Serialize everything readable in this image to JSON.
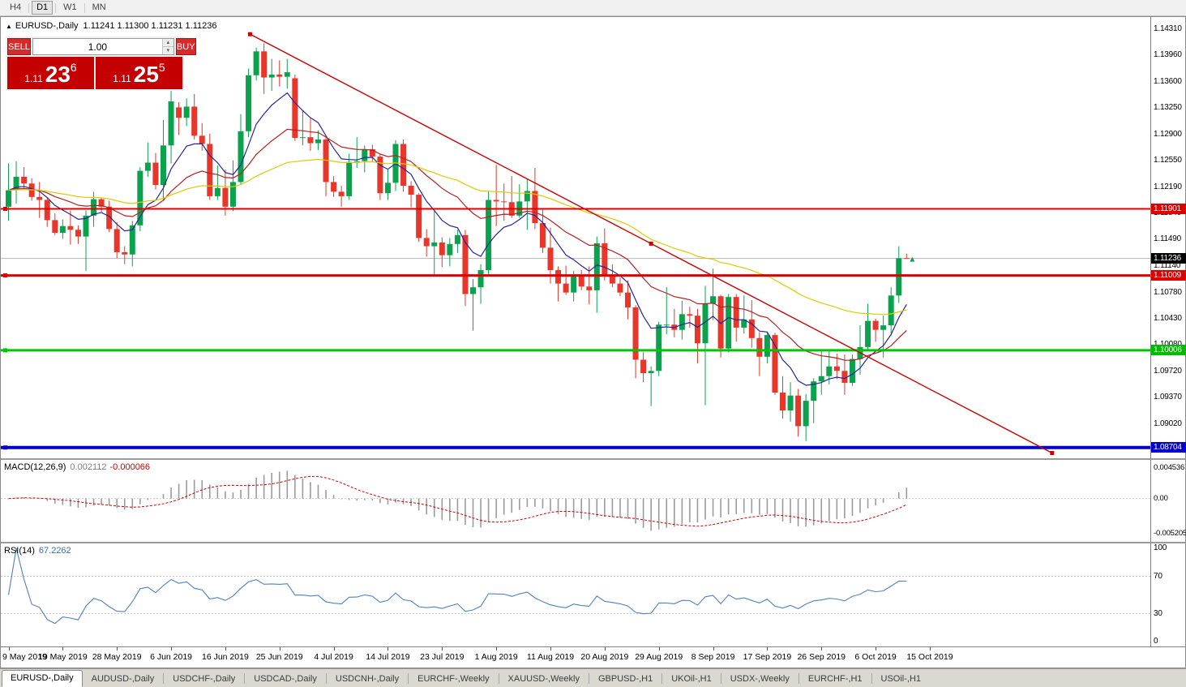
{
  "toolbar": {
    "timeframes": [
      "H4",
      "D1",
      "W1",
      "MN"
    ],
    "active": "D1"
  },
  "header": {
    "toggle_icon": "▲",
    "title_symbol": "EURUSD-,Daily",
    "title_ohlc": "1.11241 1.11300 1.11231 1.11236"
  },
  "trade_panel": {
    "sell_label": "SELL",
    "buy_label": "BUY",
    "volume": "1.00",
    "sell_price": {
      "small": "1.11",
      "big": "23",
      "sup": "6"
    },
    "buy_price": {
      "small": "1.11",
      "big": "25",
      "sup": "5"
    }
  },
  "price_scale_labels": [
    "1.14310",
    "1.13960",
    "1.13600",
    "1.13250",
    "1.12900",
    "1.12550",
    "1.12190",
    "1.11840",
    "1.11490",
    "1.11140",
    "1.10780",
    "1.10430",
    "1.10080",
    "1.09720",
    "1.09370",
    "1.09020"
  ],
  "price_badges": [
    {
      "text": "1.11901",
      "price": 1.11901,
      "bg": "#dd0000"
    },
    {
      "text": "1.11236",
      "price": 1.11236,
      "bg": "#000000"
    },
    {
      "text": "1.11009",
      "price": 1.11009,
      "bg": "#dd0000"
    },
    {
      "text": "1.10006",
      "price": 1.10006,
      "bg": "#00bb00"
    },
    {
      "text": "1.08704",
      "price": 1.08704,
      "bg": "#0000cc"
    }
  ],
  "chart_data": {
    "type": "candlestick",
    "symbol": "EURUSD",
    "timeframe": "Daily",
    "ylim": [
      1.0856,
      1.1447
    ],
    "colors": {
      "up": "#0ba24e",
      "down": "#e8362a"
    },
    "dates": [
      "2019.05.09",
      "2019.05.10",
      "2019.05.13",
      "2019.05.14",
      "2019.05.15",
      "2019.05.16",
      "2019.05.17",
      "2019.05.20",
      "2019.05.21",
      "2019.05.22",
      "2019.05.23",
      "2019.05.24",
      "2019.05.27",
      "2019.05.28",
      "2019.05.29",
      "2019.05.30",
      "2019.05.31",
      "2019.06.03",
      "2019.06.04",
      "2019.06.05",
      "2019.06.06",
      "2019.06.07",
      "2019.06.10",
      "2019.06.11",
      "2019.06.12",
      "2019.06.13",
      "2019.06.14",
      "2019.06.17",
      "2019.06.18",
      "2019.06.19",
      "2019.06.20",
      "2019.06.21",
      "2019.06.24",
      "2019.06.25",
      "2019.06.26",
      "2019.06.27",
      "2019.06.28",
      "2019.07.01",
      "2019.07.02",
      "2019.07.03",
      "2019.07.04",
      "2019.07.05",
      "2019.07.08",
      "2019.07.09",
      "2019.07.10",
      "2019.07.11",
      "2019.07.12",
      "2019.07.15",
      "2019.07.16",
      "2019.07.17",
      "2019.07.18",
      "2019.07.19",
      "2019.07.22",
      "2019.07.23",
      "2019.07.24",
      "2019.07.25",
      "2019.07.26",
      "2019.07.29",
      "2019.07.30",
      "2019.07.31",
      "2019.08.01",
      "2019.08.02",
      "2019.08.05",
      "2019.08.06",
      "2019.08.07",
      "2019.08.08",
      "2019.08.09",
      "2019.08.12",
      "2019.08.13",
      "2019.08.14",
      "2019.08.15",
      "2019.08.16",
      "2019.08.19",
      "2019.08.20",
      "2019.08.21",
      "2019.08.22",
      "2019.08.23",
      "2019.08.26",
      "2019.08.27",
      "2019.08.28",
      "2019.08.29",
      "2019.08.30",
      "2019.09.02",
      "2019.09.03",
      "2019.09.04",
      "2019.09.05",
      "2019.09.06",
      "2019.09.09",
      "2019.09.10",
      "2019.09.11",
      "2019.09.12",
      "2019.09.13",
      "2019.09.16",
      "2019.09.17",
      "2019.09.18",
      "2019.09.19",
      "2019.09.20",
      "2019.09.23",
      "2019.09.24",
      "2019.09.25",
      "2019.09.26",
      "2019.09.27",
      "2019.09.30",
      "2019.10.01",
      "2019.10.02",
      "2019.10.03",
      "2019.10.04",
      "2019.10.07",
      "2019.10.08",
      "2019.10.09",
      "2019.10.10",
      "2019.10.11",
      "2019.10.14",
      "2019.10.15",
      "2019.10.16",
      "2019.10.17",
      "2019.10.18"
    ],
    "candles": [
      [
        1.1193,
        1.1251,
        1.1174,
        1.1215
      ],
      [
        1.1215,
        1.1254,
        1.1197,
        1.1233
      ],
      [
        1.1233,
        1.1246,
        1.1218,
        1.1224
      ],
      [
        1.1224,
        1.1231,
        1.1201,
        1.1206
      ],
      [
        1.1206,
        1.1226,
        1.1178,
        1.1202
      ],
      [
        1.1202,
        1.1206,
        1.1166,
        1.1175
      ],
      [
        1.1175,
        1.1184,
        1.1155,
        1.1158
      ],
      [
        1.1158,
        1.1176,
        1.115,
        1.1167
      ],
      [
        1.1167,
        1.1188,
        1.1142,
        1.1162
      ],
      [
        1.1162,
        1.1168,
        1.1143,
        1.1153
      ],
      [
        1.1153,
        1.1188,
        1.1107,
        1.1181
      ],
      [
        1.1181,
        1.1213,
        1.1166,
        1.1203
      ],
      [
        1.1203,
        1.1205,
        1.1186,
        1.1193
      ],
      [
        1.1193,
        1.1201,
        1.1159,
        1.1163
      ],
      [
        1.1163,
        1.1172,
        1.1124,
        1.1132
      ],
      [
        1.1132,
        1.114,
        1.1116,
        1.1129
      ],
      [
        1.1129,
        1.1174,
        1.1113,
        1.1168
      ],
      [
        1.1168,
        1.1246,
        1.116,
        1.1241
      ],
      [
        1.1241,
        1.1279,
        1.1233,
        1.1252
      ],
      [
        1.1252,
        1.1265,
        1.1216,
        1.1222
      ],
      [
        1.1222,
        1.1309,
        1.1201,
        1.1275
      ],
      [
        1.1275,
        1.1348,
        1.1251,
        1.1334
      ],
      [
        1.1326,
        1.1333,
        1.1289,
        1.1312
      ],
      [
        1.1312,
        1.1338,
        1.1301,
        1.1327
      ],
      [
        1.1327,
        1.1344,
        1.1283,
        1.1288
      ],
      [
        1.1288,
        1.1305,
        1.1268,
        1.1277
      ],
      [
        1.1277,
        1.1291,
        1.1202,
        1.1207
      ],
      [
        1.1207,
        1.1248,
        1.1202,
        1.1218
      ],
      [
        1.1218,
        1.1243,
        1.1181,
        1.1193
      ],
      [
        1.1193,
        1.1255,
        1.1187,
        1.1226
      ],
      [
        1.1226,
        1.1317,
        1.1222,
        1.1294
      ],
      [
        1.1294,
        1.1378,
        1.1286,
        1.1369
      ],
      [
        1.1369,
        1.1406,
        1.1362,
        1.1401
      ],
      [
        1.1401,
        1.1412,
        1.1344,
        1.1366
      ],
      [
        1.1366,
        1.1391,
        1.1348,
        1.137
      ],
      [
        1.137,
        1.1389,
        1.1354,
        1.1367
      ],
      [
        1.1367,
        1.1391,
        1.1351,
        1.1373
      ],
      [
        1.1365,
        1.137,
        1.1281,
        1.1285
      ],
      [
        1.1285,
        1.1322,
        1.1275,
        1.1286
      ],
      [
        1.1286,
        1.1312,
        1.1268,
        1.1278
      ],
      [
        1.1278,
        1.1295,
        1.1269,
        1.1283
      ],
      [
        1.1283,
        1.1288,
        1.1207,
        1.1226
      ],
      [
        1.1226,
        1.1234,
        1.1206,
        1.1213
      ],
      [
        1.1213,
        1.1221,
        1.1193,
        1.1207
      ],
      [
        1.1207,
        1.1264,
        1.1202,
        1.1253
      ],
      [
        1.1253,
        1.1286,
        1.1245,
        1.1254
      ],
      [
        1.1254,
        1.1275,
        1.1239,
        1.127
      ],
      [
        1.127,
        1.1276,
        1.1253,
        1.126
      ],
      [
        1.126,
        1.1263,
        1.1202,
        1.1211
      ],
      [
        1.1211,
        1.1243,
        1.1202,
        1.1225
      ],
      [
        1.1225,
        1.1282,
        1.1214,
        1.1277
      ],
      [
        1.1277,
        1.1283,
        1.1213,
        1.1221
      ],
      [
        1.1221,
        1.1227,
        1.1192,
        1.1209
      ],
      [
        1.1209,
        1.1211,
        1.1146,
        1.1151
      ],
      [
        1.1151,
        1.1163,
        1.1126,
        1.114
      ],
      [
        1.114,
        1.1187,
        1.1101,
        1.1145
      ],
      [
        1.1145,
        1.1152,
        1.1112,
        1.1128
      ],
      [
        1.1128,
        1.1151,
        1.1113,
        1.1143
      ],
      [
        1.1143,
        1.1162,
        1.1131,
        1.1155
      ],
      [
        1.1155,
        1.1162,
        1.106,
        1.1076
      ],
      [
        1.1076,
        1.1096,
        1.1027,
        1.1085
      ],
      [
        1.1085,
        1.1116,
        1.1063,
        1.1108
      ],
      [
        1.1108,
        1.1214,
        1.1101,
        1.1202
      ],
      [
        1.1202,
        1.1249,
        1.1167,
        1.12
      ],
      [
        1.12,
        1.1224,
        1.1174,
        1.1199
      ],
      [
        1.1199,
        1.1234,
        1.1178,
        1.1181
      ],
      [
        1.1181,
        1.1223,
        1.1178,
        1.12
      ],
      [
        1.12,
        1.123,
        1.1162,
        1.1214
      ],
      [
        1.1214,
        1.1245,
        1.1163,
        1.1171
      ],
      [
        1.1171,
        1.1191,
        1.1131,
        1.1138
      ],
      [
        1.1138,
        1.1165,
        1.109,
        1.1108
      ],
      [
        1.1108,
        1.1113,
        1.1066,
        1.109
      ],
      [
        1.109,
        1.1114,
        1.1075,
        1.1078
      ],
      [
        1.1078,
        1.1107,
        1.1066,
        1.11
      ],
      [
        1.11,
        1.1108,
        1.1081,
        1.1086
      ],
      [
        1.1086,
        1.1113,
        1.1062,
        1.1081
      ],
      [
        1.1081,
        1.1153,
        1.1051,
        1.1144
      ],
      [
        1.1144,
        1.1164,
        1.1094,
        1.1101
      ],
      [
        1.1101,
        1.1116,
        1.1085,
        1.109
      ],
      [
        1.109,
        1.1098,
        1.1073,
        1.1078
      ],
      [
        1.1078,
        1.1094,
        1.1042,
        1.1058
      ],
      [
        1.1058,
        1.1061,
        1.0963,
        1.0988
      ],
      [
        1.0988,
        1.0998,
        1.0958,
        1.097
      ],
      [
        1.097,
        1.0979,
        1.0926,
        1.0973
      ],
      [
        1.0973,
        1.1039,
        1.0966,
        1.1035
      ],
      [
        1.1035,
        1.1085,
        1.1022,
        1.1035
      ],
      [
        1.1035,
        1.1056,
        1.1018,
        1.1028
      ],
      [
        1.1028,
        1.1067,
        1.1015,
        1.1049
      ],
      [
        1.1049,
        1.1059,
        1.1031,
        1.1047
      ],
      [
        1.1047,
        1.1056,
        1.0983,
        1.101
      ],
      [
        1.101,
        1.1087,
        1.0927,
        1.1063
      ],
      [
        1.1063,
        1.111,
        1.1041,
        1.1073
      ],
      [
        1.1073,
        1.1075,
        1.0991,
        1.1003
      ],
      [
        1.1003,
        1.1076,
        1.0998,
        1.1072
      ],
      [
        1.1072,
        1.1076,
        1.1012,
        1.1031
      ],
      [
        1.1031,
        1.1074,
        1.1023,
        1.1042
      ],
      [
        1.1042,
        1.1068,
        1.1004,
        1.1017
      ],
      [
        1.1017,
        1.1025,
        1.0966,
        1.0992
      ],
      [
        1.0992,
        1.1024,
        1.0983,
        1.1021
      ],
      [
        1.1021,
        1.1024,
        1.0941,
        1.0944
      ],
      [
        1.0944,
        1.0966,
        1.0909,
        1.092
      ],
      [
        1.092,
        1.0958,
        1.0905,
        1.094
      ],
      [
        1.094,
        1.0949,
        1.0885,
        1.0899
      ],
      [
        1.0899,
        1.0942,
        1.0879,
        1.0933
      ],
      [
        1.0933,
        1.0963,
        1.0903,
        1.0959
      ],
      [
        1.0959,
        1.0999,
        1.0941,
        1.0966
      ],
      [
        1.0966,
        1.0999,
        1.0955,
        1.0979
      ],
      [
        1.0979,
        1.0996,
        1.0962,
        1.0973
      ],
      [
        1.0973,
        1.0995,
        1.0941,
        1.0957
      ],
      [
        1.0957,
        1.0995,
        1.0953,
        1.0989
      ],
      [
        1.0989,
        1.1034,
        1.0968,
        1.1005
      ],
      [
        1.1005,
        1.1063,
        1.1002,
        1.104
      ],
      [
        1.104,
        1.1043,
        1.1012,
        1.1028
      ],
      [
        1.1028,
        1.1047,
        1.0991,
        1.1034
      ],
      [
        1.1034,
        1.1085,
        1.1023,
        1.1074
      ],
      [
        1.1074,
        1.114,
        1.1064,
        1.1124
      ],
      [
        1.11241,
        1.113,
        1.11231,
        1.11236
      ]
    ],
    "x_ticks": [
      {
        "i": 0,
        "label": "9 May 2019"
      },
      {
        "i": 7,
        "label": "19 May 2019"
      },
      {
        "i": 14,
        "label": "28 May 2019"
      },
      {
        "i": 21,
        "label": "6 Jun 2019"
      },
      {
        "i": 28,
        "label": "16 Jun 2019"
      },
      {
        "i": 35,
        "label": "25 Jun 2019"
      },
      {
        "i": 42,
        "label": "4 Jul 2019"
      },
      {
        "i": 49,
        "label": "14 Jul 2019"
      },
      {
        "i": 56,
        "label": "23 Jul 2019"
      },
      {
        "i": 63,
        "label": "1 Aug 2019"
      },
      {
        "i": 70,
        "label": "11 Aug 2019"
      },
      {
        "i": 77,
        "label": "20 Aug 2019"
      },
      {
        "i": 84,
        "label": "29 Aug 2019"
      },
      {
        "i": 91,
        "label": "8 Sep 2019"
      },
      {
        "i": 98,
        "label": "17 Sep 2019"
      },
      {
        "i": 105,
        "label": "26 Sep 2019"
      },
      {
        "i": 112,
        "label": "6 Oct 2019"
      },
      {
        "i": 119,
        "label": "15 Oct 2019"
      }
    ],
    "hlines": [
      {
        "price": 1.11901,
        "color": "#dd0000",
        "width": 2
      },
      {
        "price": 1.11009,
        "color": "#dd0000",
        "width": 3
      },
      {
        "price": 1.10006,
        "color": "#00c400",
        "width": 3
      },
      {
        "price": 1.08704,
        "color": "#0000cc",
        "width": 4
      }
    ],
    "bid_line": {
      "price": 1.11236,
      "color": "#b8b8b8"
    },
    "trendline": {
      "i1": 31.2,
      "p1": 1.1424,
      "i2": 134.8,
      "p2": 1.0863,
      "color": "#cc0000"
    },
    "ma": [
      {
        "period": 8,
        "color": "#24249c"
      },
      {
        "period": 21,
        "color": "#b22222"
      },
      {
        "period": 55,
        "color": "#ddca00"
      }
    ],
    "macd": {
      "label": "MACD(12,26,9)",
      "value_main": "0.002112",
      "value_signal": "-0.000066",
      "scale_top": "0.004536",
      "scale_zero": "0.00",
      "scale_bottom": "-0.005205",
      "range": [
        -0.005205,
        0.004536
      ],
      "hist_color": "#9b9b9b",
      "signal_color": "#d00000"
    },
    "rsi": {
      "label": "RSI(14)",
      "value": "67.2262",
      "scale": [
        "100",
        "70",
        "30",
        "0"
      ],
      "levels": [
        70,
        30
      ],
      "color": "#4f81bd"
    }
  },
  "tabs": [
    {
      "label": "EURUSD-,Daily",
      "active": true
    },
    {
      "label": "AUDUSD-,Daily",
      "active": false
    },
    {
      "label": "USDCHF-,Daily",
      "active": false
    },
    {
      "label": "USDCAD-,Daily",
      "active": false
    },
    {
      "label": "USDCNH-,Daily",
      "active": false
    },
    {
      "label": "EURCHF-,Weekly",
      "active": false
    },
    {
      "label": "XAUUSD-,Weekly",
      "active": false
    },
    {
      "label": "GBPUSD-,H1",
      "active": false
    },
    {
      "label": "UKOil-,H1",
      "active": false
    },
    {
      "label": "USDX-,Weekly",
      "active": false
    },
    {
      "label": "EURCHF-,H1",
      "active": false
    },
    {
      "label": "USOil-,H1",
      "active": false
    }
  ]
}
